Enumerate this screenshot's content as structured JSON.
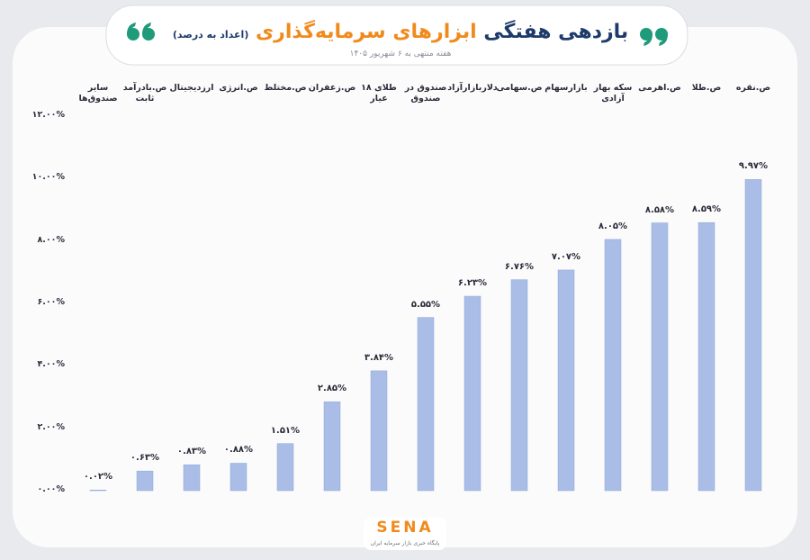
{
  "chart_data": {
    "type": "bar",
    "title": "بازدهی هفتگی",
    "title_highlight": "ابزارهای سرمایه‌گذاری",
    "title_note": "(اعداد به درصد)",
    "subtitle": "هفته منتهی به ۶ شهریور ۱۴۰۵",
    "brand": "SENA",
    "brand_tagline": "پایگاه خبری بازار سرمایه ایران",
    "categories": [
      "سایر صندوق‌ها",
      "ص.بادرآمد ثابت",
      "ارزدیجیتال",
      "ص.انرژی",
      "ص.مختلط",
      "ص.زعفران",
      "طلای ۱۸ عیار",
      "صندوق در صندوق",
      "دلاربازارآزاد",
      "ص.سهامی",
      "بازارسهام",
      "سکه بهار آزادی",
      "ص.اهرمی",
      "ص.طلا",
      "ص.نقره"
    ],
    "values": [
      0.02,
      0.63,
      0.83,
      0.88,
      1.51,
      2.85,
      3.84,
      5.55,
      6.23,
      6.76,
      7.07,
      8.05,
      8.58,
      8.59,
      9.97
    ],
    "value_labels": [
      "۰.۰۲%",
      "۰.۶۳%",
      "۰.۸۳%",
      "۰.۸۸%",
      "۱.۵۱%",
      "۲.۸۵%",
      "۳.۸۴%",
      "۵.۵۵%",
      "۶.۲۳%",
      "۶.۷۶%",
      "۷.۰۷%",
      "۸.۰۵%",
      "۸.۵۸%",
      "۸.۵۹%",
      "۹.۹۷%"
    ],
    "color": "#a9bde6",
    "ylim": [
      0,
      12
    ],
    "yticks": [
      {
        "value": 0,
        "label": "۰.۰۰%"
      },
      {
        "value": 2,
        "label": "۲.۰۰%"
      },
      {
        "value": 4,
        "label": "۴.۰۰%"
      },
      {
        "value": 6,
        "label": "۶.۰۰%"
      },
      {
        "value": 8,
        "label": "۸.۰۰%"
      },
      {
        "value": 10,
        "label": "۱۰.۰۰%"
      },
      {
        "value": 12,
        "label": "۱۲.۰۰%"
      }
    ],
    "grid": false
  }
}
